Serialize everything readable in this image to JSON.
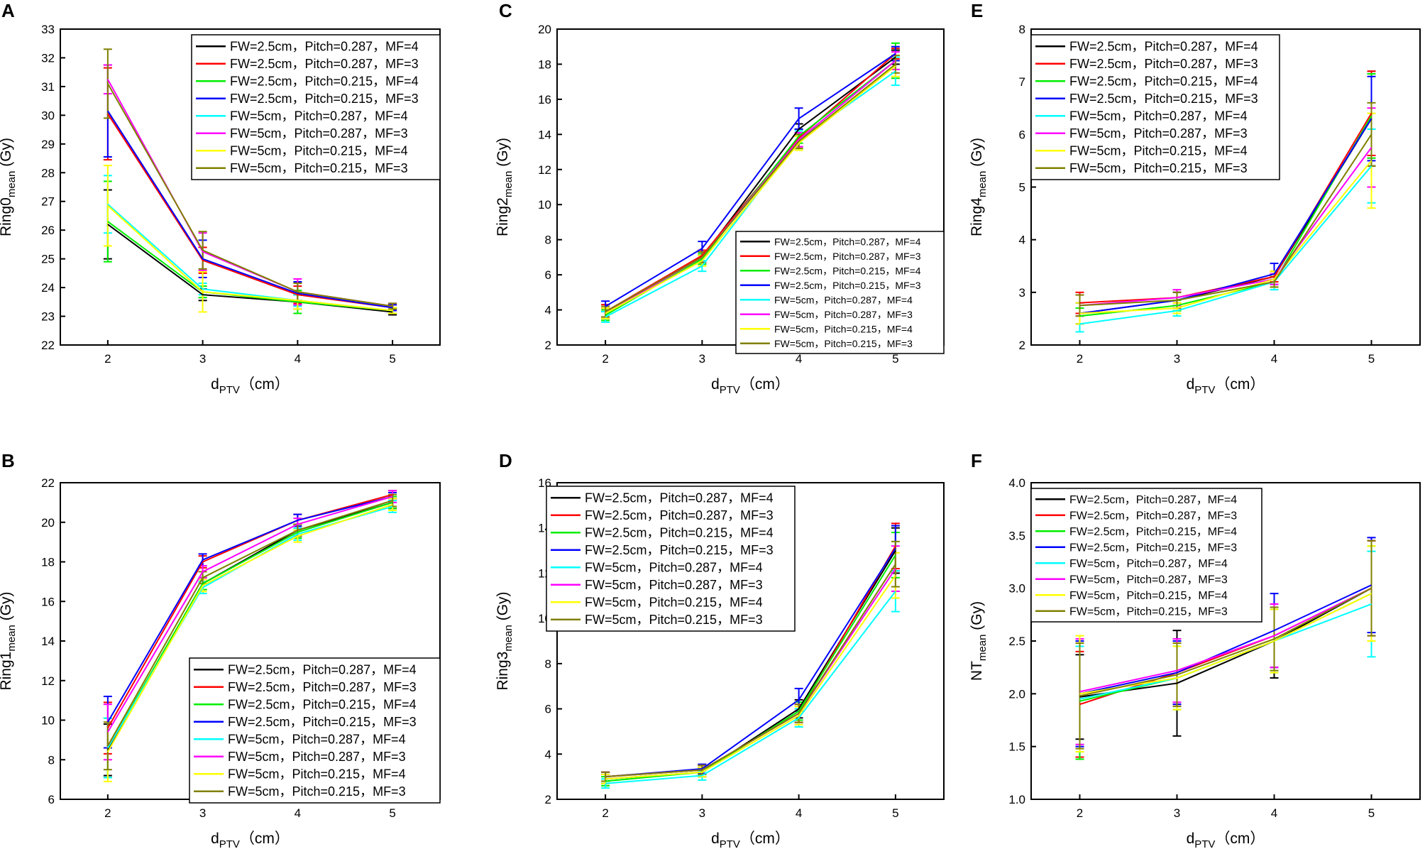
{
  "series_styles": [
    {
      "name": "FW=2.5cm，Pitch=0.287，MF=4",
      "color": "#000000"
    },
    {
      "name": "FW=2.5cm，Pitch=0.287，MF=3",
      "color": "#ff0000"
    },
    {
      "name": "FW=2.5cm，Pitch=0.215，MF=4",
      "color": "#00ee00"
    },
    {
      "name": "FW=2.5cm，Pitch=0.215，MF=3",
      "color": "#0000ff"
    },
    {
      "name": "FW=5cm，Pitch=0.287，MF=4",
      "color": "#00ffff"
    },
    {
      "name": "FW=5cm，Pitch=0.287，MF=3",
      "color": "#ff00ff"
    },
    {
      "name": "FW=5cm，Pitch=0.215，MF=4",
      "color": "#ffff00"
    },
    {
      "name": "FW=5cm，Pitch=0.215，MF=3",
      "color": "#808000"
    }
  ],
  "chart_data": [
    {
      "id": "A",
      "panel_label": "A",
      "type": "line",
      "ylabel_main": "Ring0",
      "ylabel_sub": "mean",
      "ylabel_unit": " (Gy)",
      "xlabel_main": "d",
      "xlabel_sub": "PTV",
      "xlabel_unit": "（cm）",
      "x": [
        2,
        3,
        4,
        5
      ],
      "xlim": [
        1.5,
        5.5
      ],
      "ylim": [
        22,
        33
      ],
      "yticks": [
        22,
        23,
        24,
        25,
        26,
        27,
        28,
        29,
        30,
        31,
        32,
        33
      ],
      "legend": "top-right",
      "series": [
        {
          "name": "FW=2.5cm，Pitch=0.287，MF=4",
          "values": [
            26.2,
            23.75,
            23.5,
            23.15
          ],
          "errors": [
            1.2,
            0.2,
            0.25,
            0.1
          ]
        },
        {
          "name": "FW=2.5cm，Pitch=0.287，MF=3",
          "values": [
            30.05,
            24.95,
            23.75,
            23.3
          ],
          "errors": [
            1.6,
            0.45,
            0.3,
            0.1
          ]
        },
        {
          "name": "FW=2.5cm，Pitch=0.215，MF=4",
          "values": [
            26.3,
            23.85,
            23.5,
            23.2
          ],
          "errors": [
            1.4,
            0.2,
            0.4,
            0.1
          ]
        },
        {
          "name": "FW=2.5cm，Pitch=0.215，MF=3",
          "values": [
            30.15,
            25.0,
            23.8,
            23.3
          ],
          "errors": [
            1.6,
            0.65,
            0.4,
            0.1
          ]
        },
        {
          "name": "FW=5cm，Pitch=0.287，MF=4",
          "values": [
            26.9,
            23.95,
            23.55,
            23.2
          ],
          "errors": [
            1.0,
            0.2,
            0.2,
            0.1
          ]
        },
        {
          "name": "FW=5cm，Pitch=0.287，MF=3",
          "values": [
            31.25,
            25.25,
            23.85,
            23.35
          ],
          "errors": [
            0.5,
            0.65,
            0.45,
            0.1
          ]
        },
        {
          "name": "FW=5cm，Pitch=0.215，MF=4",
          "values": [
            26.85,
            23.85,
            23.55,
            23.2
          ],
          "errors": [
            1.4,
            0.7,
            0.3,
            0.1
          ]
        },
        {
          "name": "FW=5cm，Pitch=0.215，MF=3",
          "values": [
            31.1,
            25.3,
            23.85,
            23.35
          ],
          "errors": [
            1.2,
            0.65,
            0.3,
            0.1
          ]
        }
      ]
    },
    {
      "id": "C",
      "panel_label": "C",
      "type": "line",
      "ylabel_main": "Ring2",
      "ylabel_sub": "mean",
      "ylabel_unit": " (Gy)",
      "xlabel_main": "d",
      "xlabel_sub": "PTV",
      "xlabel_unit": "（cm）",
      "x": [
        2,
        3,
        4,
        5
      ],
      "xlim": [
        1.5,
        5.5
      ],
      "ylim": [
        2,
        20
      ],
      "yticks": [
        2,
        4,
        6,
        8,
        10,
        12,
        14,
        16,
        18,
        20
      ],
      "legend": "bottom-right",
      "series": [
        {
          "name": "FW=2.5cm，Pitch=0.287，MF=4",
          "values": [
            3.8,
            7.0,
            14.3,
            18.4
          ],
          "errors": [
            0.3,
            0.3,
            0.3,
            0.4
          ]
        },
        {
          "name": "FW=2.5cm，Pitch=0.287，MF=3",
          "values": [
            3.9,
            7.1,
            13.8,
            18.6
          ],
          "errors": [
            0.4,
            0.3,
            0.5,
            0.3
          ]
        },
        {
          "name": "FW=2.5cm，Pitch=0.215，MF=4",
          "values": [
            3.7,
            6.9,
            13.9,
            18.2
          ],
          "errors": [
            0.3,
            0.3,
            0.4,
            1.0
          ]
        },
        {
          "name": "FW=2.5cm，Pitch=0.215，MF=3",
          "values": [
            4.2,
            7.5,
            14.9,
            18.6
          ],
          "errors": [
            0.3,
            0.4,
            0.6,
            0.4
          ]
        },
        {
          "name": "FW=5cm，Pitch=0.287，MF=4",
          "values": [
            3.6,
            6.5,
            13.7,
            17.6
          ],
          "errors": [
            0.3,
            0.3,
            0.5,
            0.8
          ]
        },
        {
          "name": "FW=5cm，Pitch=0.287，MF=3",
          "values": [
            3.8,
            7.0,
            13.7,
            18.2
          ],
          "errors": [
            0.3,
            0.3,
            0.4,
            0.5
          ]
        },
        {
          "name": "FW=5cm，Pitch=0.215，MF=4",
          "values": [
            3.8,
            6.8,
            13.5,
            17.9
          ],
          "errors": [
            0.3,
            0.3,
            0.4,
            0.6
          ]
        },
        {
          "name": "FW=5cm，Pitch=0.215，MF=3",
          "values": [
            3.9,
            7.0,
            13.6,
            18.0
          ],
          "errors": [
            0.3,
            0.3,
            0.4,
            0.5
          ]
        }
      ]
    },
    {
      "id": "E",
      "panel_label": "E",
      "type": "line",
      "ylabel_main": "Ring4",
      "ylabel_sub": "mean",
      "ylabel_unit": " (Gy)",
      "xlabel_main": "d",
      "xlabel_sub": "PTV",
      "xlabel_unit": "（cm）",
      "x": [
        2,
        3,
        4,
        5
      ],
      "xlim": [
        1.5,
        5.5
      ],
      "ylim": [
        2,
        8
      ],
      "yticks": [
        2,
        3,
        4,
        5,
        6,
        7,
        8
      ],
      "legend": "top-right",
      "series": [
        {
          "name": "FW=2.5cm，Pitch=0.287，MF=4",
          "values": [
            2.6,
            2.85,
            3.3,
            6.3
          ],
          "errors": [
            0.2,
            0.15,
            0.1,
            0.9
          ]
        },
        {
          "name": "FW=2.5cm，Pitch=0.287，MF=3",
          "values": [
            2.8,
            2.9,
            3.3,
            6.4
          ],
          "errors": [
            0.2,
            0.1,
            0.1,
            0.8
          ]
        },
        {
          "name": "FW=2.5cm，Pitch=0.215，MF=4",
          "values": [
            2.55,
            2.75,
            3.2,
            6.35
          ],
          "errors": [
            0.15,
            0.1,
            0.1,
            0.8
          ]
        },
        {
          "name": "FW=2.5cm，Pitch=0.215，MF=3",
          "values": [
            2.6,
            2.85,
            3.35,
            6.3
          ],
          "errors": [
            0.2,
            0.15,
            0.2,
            0.8
          ]
        },
        {
          "name": "FW=5cm，Pitch=0.287，MF=4",
          "values": [
            2.4,
            2.65,
            3.2,
            5.4
          ],
          "errors": [
            0.15,
            0.1,
            0.15,
            0.7
          ]
        },
        {
          "name": "FW=5cm，Pitch=0.287，MF=3",
          "values": [
            2.75,
            2.9,
            3.25,
            5.75
          ],
          "errors": [
            0.2,
            0.15,
            0.1,
            0.75
          ]
        },
        {
          "name": "FW=5cm，Pitch=0.215，MF=4",
          "values": [
            2.6,
            2.7,
            3.25,
            5.5
          ],
          "errors": [
            0.2,
            0.1,
            0.15,
            0.9
          ]
        },
        {
          "name": "FW=5cm，Pitch=0.215，MF=3",
          "values": [
            2.75,
            2.85,
            3.2,
            6.0
          ],
          "errors": [
            0.2,
            0.15,
            0.1,
            0.6
          ]
        }
      ]
    },
    {
      "id": "B",
      "panel_label": "B",
      "type": "line",
      "ylabel_main": "Ring1",
      "ylabel_sub": "mean",
      "ylabel_unit": " (Gy)",
      "xlabel_main": "d",
      "xlabel_sub": "PTV",
      "xlabel_unit": "（cm）",
      "x": [
        2,
        3,
        4,
        5
      ],
      "xlim": [
        1.5,
        5.5
      ],
      "ylim": [
        6,
        22
      ],
      "yticks": [
        6,
        8,
        10,
        12,
        14,
        16,
        18,
        20,
        22
      ],
      "legend": "bottom-right",
      "series": [
        {
          "name": "FW=2.5cm，Pitch=0.287，MF=4",
          "values": [
            8.5,
            16.9,
            19.6,
            21.0
          ],
          "errors": [
            1.3,
            0.3,
            0.3,
            0.3
          ]
        },
        {
          "name": "FW=2.5cm，Pitch=0.287，MF=3",
          "values": [
            9.6,
            18.0,
            20.1,
            21.4
          ],
          "errors": [
            1.3,
            0.3,
            0.3,
            0.2
          ]
        },
        {
          "name": "FW=2.5cm，Pitch=0.215，MF=4",
          "values": [
            8.6,
            16.9,
            19.5,
            21.0
          ],
          "errors": [
            1.5,
            0.3,
            0.3,
            0.3
          ]
        },
        {
          "name": "FW=2.5cm，Pitch=0.215，MF=3",
          "values": [
            9.9,
            18.1,
            20.1,
            21.3
          ],
          "errors": [
            1.3,
            0.3,
            0.3,
            0.2
          ]
        },
        {
          "name": "FW=5cm，Pitch=0.287，MF=4",
          "values": [
            8.6,
            16.7,
            19.4,
            20.8
          ],
          "errors": [
            1.5,
            0.3,
            0.3,
            0.3
          ]
        },
        {
          "name": "FW=5cm，Pitch=0.287，MF=3",
          "values": [
            9.4,
            17.5,
            19.9,
            21.3
          ],
          "errors": [
            1.4,
            0.3,
            0.3,
            0.3
          ]
        },
        {
          "name": "FW=5cm，Pitch=0.215，MF=4",
          "values": [
            8.4,
            16.8,
            19.3,
            20.9
          ],
          "errors": [
            1.5,
            0.3,
            0.3,
            0.3
          ]
        },
        {
          "name": "FW=5cm，Pitch=0.215，MF=3",
          "values": [
            8.7,
            17.2,
            19.6,
            21.1
          ],
          "errors": [
            1.2,
            0.3,
            0.3,
            0.3
          ]
        }
      ]
    },
    {
      "id": "D",
      "panel_label": "D",
      "type": "line",
      "ylabel_main": "Ring3",
      "ylabel_sub": "mean",
      "ylabel_unit": " (Gy)",
      "xlabel_main": "d",
      "xlabel_sub": "PTV",
      "xlabel_unit": "（cm）",
      "x": [
        2,
        3,
        4,
        5
      ],
      "xlim": [
        1.5,
        5.5
      ],
      "ylim": [
        2,
        16
      ],
      "yticks": [
        2,
        4,
        6,
        8,
        10,
        12,
        14,
        16
      ],
      "legend": "top-left",
      "series": [
        {
          "name": "FW=2.5cm，Pitch=0.287，MF=4",
          "values": [
            2.9,
            3.2,
            6.0,
            13.0
          ],
          "errors": [
            0.2,
            0.2,
            0.4,
            1.0
          ]
        },
        {
          "name": "FW=2.5cm，Pitch=0.287，MF=3",
          "values": [
            3.0,
            3.3,
            5.8,
            13.2
          ],
          "errors": [
            0.2,
            0.2,
            0.4,
            1.0
          ]
        },
        {
          "name": "FW=2.5cm，Pitch=0.215，MF=4",
          "values": [
            2.8,
            3.2,
            5.9,
            12.8
          ],
          "errors": [
            0.2,
            0.2,
            0.4,
            1.0
          ]
        },
        {
          "name": "FW=2.5cm，Pitch=0.215，MF=3",
          "values": [
            3.0,
            3.35,
            6.4,
            13.1
          ],
          "errors": [
            0.2,
            0.2,
            0.5,
            1.0
          ]
        },
        {
          "name": "FW=5cm，Pitch=0.287，MF=4",
          "values": [
            2.7,
            3.05,
            5.6,
            11.2
          ],
          "errors": [
            0.2,
            0.2,
            0.4,
            0.9
          ]
        },
        {
          "name": "FW=5cm，Pitch=0.287，MF=3",
          "values": [
            3.0,
            3.3,
            5.8,
            12.2
          ],
          "errors": [
            0.2,
            0.2,
            0.4,
            1.0
          ]
        },
        {
          "name": "FW=5cm，Pitch=0.215，MF=4",
          "values": [
            2.9,
            3.2,
            5.7,
            11.9
          ],
          "errors": [
            0.2,
            0.2,
            0.4,
            1.0
          ]
        },
        {
          "name": "FW=5cm，Pitch=0.215，MF=3",
          "values": [
            3.0,
            3.3,
            5.8,
            12.4
          ],
          "errors": [
            0.2,
            0.2,
            0.4,
            1.0
          ]
        }
      ]
    },
    {
      "id": "F",
      "panel_label": "F",
      "type": "line",
      "ylabel_main": "NT",
      "ylabel_sub": "mean",
      "ylabel_unit": " (Gy)",
      "xlabel_main": "d",
      "xlabel_sub": "PTV",
      "xlabel_unit": "（cm）",
      "x": [
        2,
        3,
        4,
        5
      ],
      "xlim": [
        1.5,
        5.5
      ],
      "ylim": [
        1.0,
        4.0
      ],
      "yticks": [
        1.0,
        1.5,
        2.0,
        2.5,
        3.0,
        3.5,
        4.0
      ],
      "legend": "top-left",
      "series": [
        {
          "name": "FW=2.5cm，Pitch=0.287，MF=4",
          "values": [
            1.97,
            2.1,
            2.5,
            3.0
          ],
          "errors": [
            0.4,
            0.5,
            0.35,
            0.45
          ]
        },
        {
          "name": "FW=2.5cm，Pitch=0.287，MF=3",
          "values": [
            1.9,
            2.2,
            2.55,
            3.0
          ],
          "errors": [
            0.5,
            0.3,
            0.3,
            0.45
          ]
        },
        {
          "name": "FW=2.5cm，Pitch=0.215，MF=4",
          "values": [
            1.93,
            2.15,
            2.5,
            2.95
          ],
          "errors": [
            0.55,
            0.3,
            0.3,
            0.45
          ]
        },
        {
          "name": "FW=2.5cm，Pitch=0.215，MF=3",
          "values": [
            2.0,
            2.2,
            2.6,
            3.03
          ],
          "errors": [
            0.5,
            0.3,
            0.35,
            0.45
          ]
        },
        {
          "name": "FW=5cm，Pitch=0.287，MF=4",
          "values": [
            1.95,
            2.15,
            2.5,
            2.85
          ],
          "errors": [
            0.5,
            0.3,
            0.3,
            0.5
          ]
        },
        {
          "name": "FW=5cm，Pitch=0.287，MF=3",
          "values": [
            2.02,
            2.22,
            2.55,
            3.0
          ],
          "errors": [
            0.5,
            0.3,
            0.3,
            0.45
          ]
        },
        {
          "name": "FW=5cm，Pitch=0.215，MF=4",
          "values": [
            2.0,
            2.15,
            2.5,
            2.95
          ],
          "errors": [
            0.55,
            0.3,
            0.3,
            0.45
          ]
        },
        {
          "name": "FW=5cm，Pitch=0.215，MF=3",
          "values": [
            1.98,
            2.18,
            2.52,
            3.0
          ],
          "errors": [
            0.5,
            0.3,
            0.3,
            0.45
          ]
        }
      ]
    }
  ]
}
